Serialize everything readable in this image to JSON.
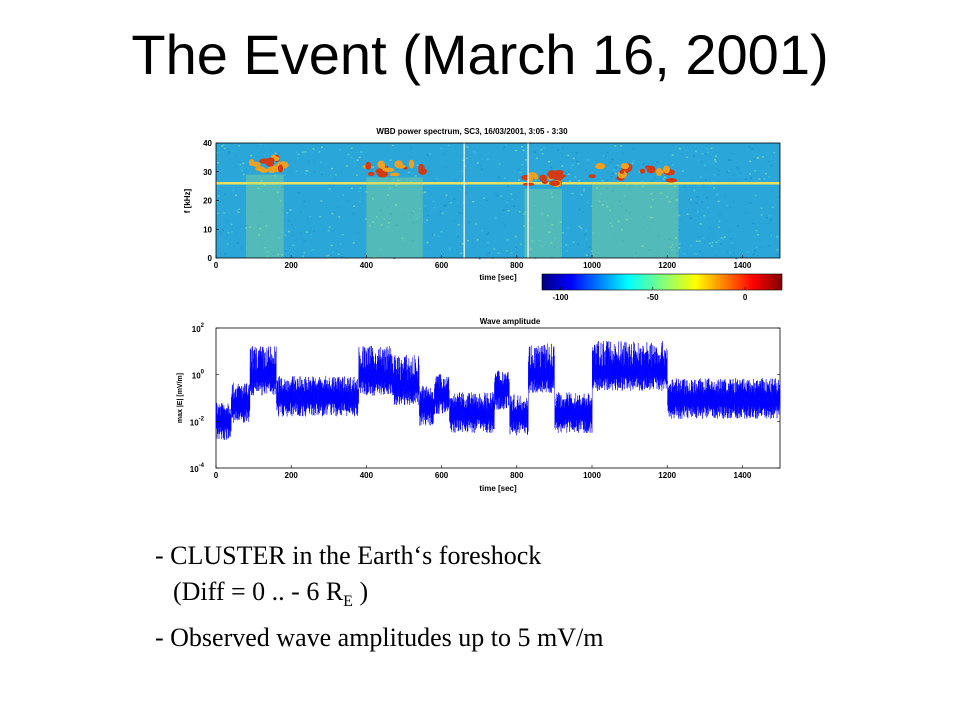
{
  "slide": {
    "title": "The Event (March 16, 2001)",
    "bullets": {
      "line1": "- CLUSTER in the Earth‘s foreshock",
      "line2_prefix": "(Diff  = 0 .. - 6 R",
      "line2_sub": "E",
      "line2_suffix": " )",
      "line3": "- Observed wave amplitudes up to 5 mV/m"
    }
  },
  "colors": {
    "spectrogram_background": "#2aa6d8",
    "emission_band": "#e8e060",
    "emission_peak": "#d43a14",
    "trace": "#0000ff"
  },
  "chart_data": [
    {
      "type": "heatmap",
      "title": "WBD power spectrum, SC3, 16/03/2001, 3:05 - 3:30",
      "xlabel": "time [sec]",
      "ylabel": "f [kHz]",
      "xlim": [
        0,
        1500
      ],
      "ylim": [
        0,
        40
      ],
      "xticks": [
        0,
        200,
        400,
        600,
        800,
        1000,
        1200,
        1400
      ],
      "yticks": [
        0,
        10,
        20,
        30,
        40
      ],
      "colorbar": {
        "ticks": [
          -100,
          -50,
          0
        ],
        "range": [
          -110,
          20
        ]
      },
      "emission_line_khz": 26,
      "enhanced_intervals": [
        {
          "t0": 80,
          "t1": 180,
          "f_peak": 31,
          "level": 0
        },
        {
          "t0": 400,
          "t1": 550,
          "f_peak": 30,
          "level": -5
        },
        {
          "t0": 820,
          "t1": 920,
          "f_peak": 26,
          "level": -5
        },
        {
          "t0": 1000,
          "t1": 1230,
          "f_peak": 28,
          "level": 0
        }
      ]
    },
    {
      "type": "line",
      "title": "Wave amplitude",
      "xlabel": "time [sec]",
      "ylabel": "max |E| [mV/m]",
      "xlim": [
        0,
        1500
      ],
      "ylim_log10": [
        -4,
        2
      ],
      "xticks": [
        0,
        200,
        400,
        600,
        800,
        1000,
        1200,
        1400
      ],
      "yticks": [
        "10-4",
        "10-2",
        "100",
        "102"
      ],
      "segments_log10": [
        {
          "t0": 0,
          "t1": 40,
          "base": -1.9
        },
        {
          "t0": 40,
          "t1": 90,
          "base": -1.2
        },
        {
          "t0": 90,
          "t1": 160,
          "base": 0.0
        },
        {
          "t0": 160,
          "t1": 380,
          "base": -0.9
        },
        {
          "t0": 380,
          "t1": 470,
          "base": 0.0
        },
        {
          "t0": 470,
          "t1": 540,
          "base": -0.4
        },
        {
          "t0": 540,
          "t1": 580,
          "base": -1.3
        },
        {
          "t0": 580,
          "t1": 620,
          "base": -0.8
        },
        {
          "t0": 620,
          "t1": 740,
          "base": -1.6
        },
        {
          "t0": 740,
          "t1": 780,
          "base": -0.6
        },
        {
          "t0": 780,
          "t1": 830,
          "base": -1.7
        },
        {
          "t0": 830,
          "t1": 900,
          "base": 0.1
        },
        {
          "t0": 900,
          "t1": 1000,
          "base": -1.6
        },
        {
          "t0": 1000,
          "t1": 1200,
          "base": 0.2
        },
        {
          "t0": 1200,
          "t1": 1500,
          "base": -1.0
        }
      ],
      "max_amplitude_mV_m": 5
    }
  ]
}
